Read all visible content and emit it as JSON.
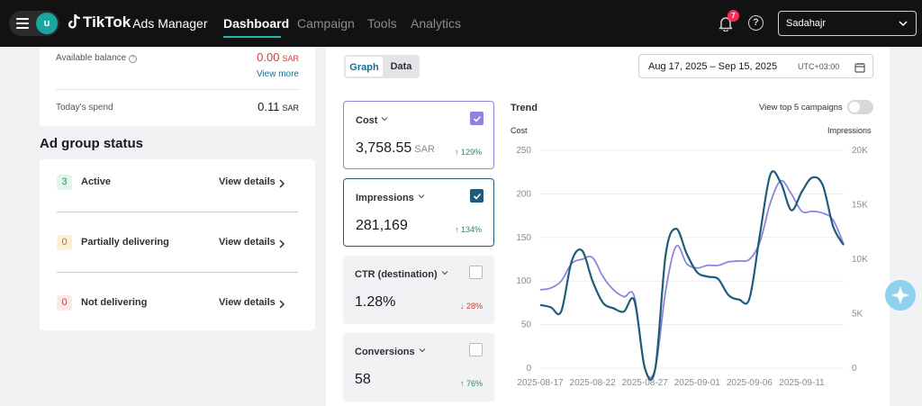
{
  "topbar": {
    "avatar_letter": "u",
    "brand": "TikTok",
    "product": "Ads Manager",
    "nav": [
      "Dashboard",
      "Campaign",
      "Tools",
      "Analytics"
    ],
    "active_nav": "Dashboard",
    "notifications_count": "7",
    "help_symbol": "?",
    "account": "Sadahajr",
    "icons": [
      "menu-icon",
      "tiktok-logo-icon",
      "bell-icon",
      "help-icon",
      "chevron-down-icon"
    ]
  },
  "balance": {
    "available_label": "Available balance",
    "available_value": "0.00",
    "available_currency": "SAR",
    "view_more": "View more",
    "today_label": "Today's spend",
    "today_value": "0.11",
    "today_currency": "SAR"
  },
  "ad_group_status": {
    "title": "Ad group status",
    "rows": [
      {
        "count": "3",
        "label": "Active",
        "link": "View details"
      },
      {
        "count": "0",
        "label": "Partially delivering",
        "link": "View details"
      },
      {
        "count": "0",
        "label": "Not delivering",
        "link": "View details"
      }
    ]
  },
  "view_toggle": {
    "graph": "Graph",
    "data": "Data",
    "selected": "Graph"
  },
  "date_range": {
    "text": "Aug 17, 2025 – Sep 15, 2025",
    "timezone": "UTC+03:00"
  },
  "metrics": [
    {
      "label": "Cost",
      "value": "3,758.55",
      "unit": "SAR",
      "change": "↑ 129%",
      "trend": "up",
      "checked": true
    },
    {
      "label": "Impressions",
      "value": "281,169",
      "unit": "",
      "change": "↑ 134%",
      "trend": "up",
      "checked": true
    },
    {
      "label": "CTR (destination)",
      "value": "1.28%",
      "unit": "",
      "change": "↓ 28%",
      "trend": "down",
      "checked": false
    },
    {
      "label": "Conversions",
      "value": "58",
      "unit": "",
      "change": "↑ 76%",
      "trend": "up",
      "checked": false
    }
  ],
  "trend": {
    "title": "Trend",
    "top5_label": "View top 5 campaigns",
    "top5_enabled": false,
    "left_axis_title": "Cost",
    "right_axis_title": "Impressions"
  },
  "colors": {
    "accent": "#25b5b0",
    "cost_series": "#8e84e0",
    "impressions_series": "#1f5b7a",
    "positive": "#2b8a64",
    "negative": "#d23c3c"
  },
  "chart_data": {
    "type": "line",
    "x_tick_labels": [
      "2025-08-17",
      "2025-08-22",
      "2025-08-27",
      "2025-09-01",
      "2025-09-06",
      "2025-09-11"
    ],
    "x": [
      "2025-08-17",
      "2025-08-18",
      "2025-08-19",
      "2025-08-20",
      "2025-08-21",
      "2025-08-22",
      "2025-08-23",
      "2025-08-24",
      "2025-08-25",
      "2025-08-26",
      "2025-08-27",
      "2025-08-28",
      "2025-08-29",
      "2025-08-30",
      "2025-08-31",
      "2025-09-01",
      "2025-09-02",
      "2025-09-03",
      "2025-09-04",
      "2025-09-05",
      "2025-09-06",
      "2025-09-07",
      "2025-09-08",
      "2025-09-09",
      "2025-09-10",
      "2025-09-11",
      "2025-09-12",
      "2025-09-13",
      "2025-09-14",
      "2025-09-15"
    ],
    "series": [
      {
        "name": "Cost",
        "axis": "left",
        "values": [
          90,
          92,
          100,
          120,
          125,
          127,
          105,
          90,
          82,
          82,
          0,
          0,
          90,
          140,
          120,
          115,
          118,
          118,
          122,
          123,
          125,
          145,
          190,
          215,
          200,
          180,
          180,
          178,
          170,
          142
        ]
      },
      {
        "name": "Impressions",
        "axis": "right",
        "values": [
          5800,
          5600,
          5200,
          9800,
          10800,
          8000,
          6000,
          5500,
          5200,
          6200,
          0,
          0,
          10500,
          12800,
          10500,
          8800,
          8400,
          8200,
          6700,
          6300,
          6400,
          12300,
          17800,
          17000,
          14500,
          16200,
          17500,
          16800,
          13000,
          11300
        ]
      }
    ],
    "ylim_left": [
      0,
      250
    ],
    "ylim_right": [
      0,
      20000
    ],
    "yticks_left": [
      "0",
      "50",
      "100",
      "150",
      "200",
      "250"
    ],
    "yticks_right": [
      "0",
      "5K",
      "10K",
      "15K",
      "20K"
    ],
    "grid": true
  }
}
